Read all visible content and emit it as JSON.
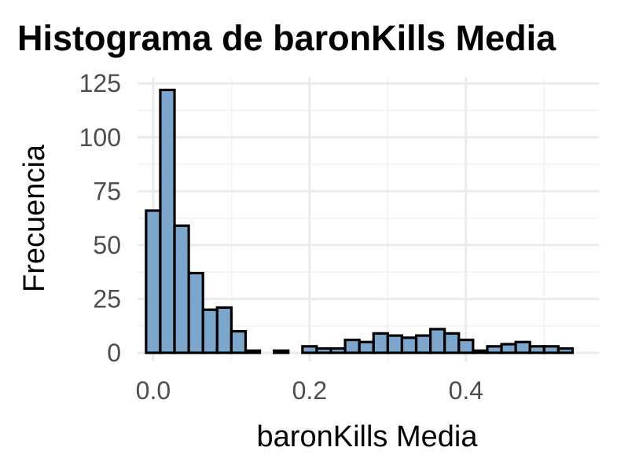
{
  "chart_data": {
    "type": "bar",
    "title": "Histograma de baronKills Media",
    "xlabel": "baronKills Media",
    "ylabel": "Frecuencia",
    "xlim": [
      -0.02,
      0.57
    ],
    "ylim": [
      -4,
      128
    ],
    "xticks": [
      0.0,
      0.2,
      0.4
    ],
    "xtick_labels": [
      "0.0",
      "0.2",
      "0.4"
    ],
    "yticks": [
      0,
      25,
      50,
      75,
      100,
      125
    ],
    "ytick_labels": [
      "0",
      "25",
      "50",
      "75",
      "100",
      "125"
    ],
    "grid": true,
    "colors": {
      "bar_fill": "#6e9cc6",
      "bar_stroke": "#000000",
      "grid": "#ebebeb"
    },
    "bins": {
      "start": -0.00909,
      "width": 0.01818,
      "values": [
        66,
        122,
        59,
        37,
        20,
        21,
        10,
        1,
        0,
        1,
        0,
        3,
        2,
        2,
        6,
        5,
        9,
        8,
        7,
        8,
        11,
        9,
        6,
        1,
        3,
        4,
        5,
        3,
        3,
        2
      ]
    }
  }
}
